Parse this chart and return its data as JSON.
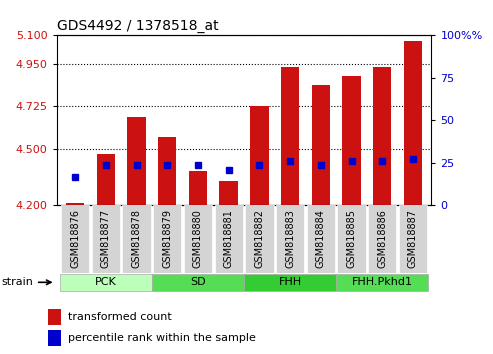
{
  "title": "GDS4492 / 1378518_at",
  "samples": [
    "GSM818876",
    "GSM818877",
    "GSM818878",
    "GSM818879",
    "GSM818880",
    "GSM818881",
    "GSM818882",
    "GSM818883",
    "GSM818884",
    "GSM818885",
    "GSM818886",
    "GSM818887"
  ],
  "groups": [
    {
      "label": "PCK",
      "start": 0,
      "end": 3,
      "color": "#bbffbb"
    },
    {
      "label": "SD",
      "start": 3,
      "end": 6,
      "color": "#55cc55"
    },
    {
      "label": "FHH",
      "start": 6,
      "end": 9,
      "color": "#33bb33"
    },
    {
      "label": "FHH.Pkhd1",
      "start": 9,
      "end": 12,
      "color": "#55cc55"
    }
  ],
  "red_values": [
    4.21,
    4.47,
    4.67,
    4.56,
    4.38,
    4.33,
    4.725,
    4.935,
    4.835,
    4.885,
    4.935,
    5.07
  ],
  "blue_values": [
    4.35,
    4.415,
    4.415,
    4.415,
    4.415,
    4.385,
    4.415,
    4.435,
    4.415,
    4.435,
    4.435,
    4.445
  ],
  "ymin": 4.2,
  "ymax": 5.1,
  "yticks_left": [
    4.2,
    4.5,
    4.725,
    4.95,
    5.1
  ],
  "yticks_right": [
    0,
    25,
    50,
    75,
    100
  ],
  "bar_color": "#cc1111",
  "dot_color": "#0000cc",
  "legend_red": "transformed count",
  "legend_blue": "percentile rank within the sample",
  "strain_label": "strain"
}
